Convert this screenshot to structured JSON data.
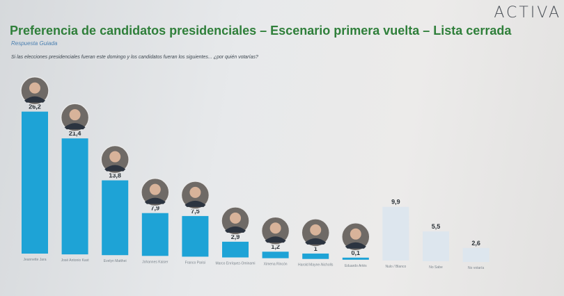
{
  "header": {
    "brand": "ACTIVA",
    "title": "Preferencia de candidatos presidenciales – Escenario primera vuelta – Lista cerrada",
    "subtitle": "Respuesta Guiada",
    "question": "Si las elecciones presidenciales fueran este domingo y los candidatos fueran los siguientes... ¿por quién votarías?"
  },
  "colors": {
    "bar_candidate": "#1ea3d6",
    "bar_other": "#dde6ee",
    "title": "#2f7f3a"
  },
  "chart_data": {
    "type": "bar",
    "title": "Preferencia de candidatos presidenciales – Escenario primera vuelta – Lista cerrada",
    "categories": [
      "Jeannette Jara",
      "José Antonio Kast",
      "Evelyn Matthei",
      "Johannes Kaiser",
      "Franco Parisi",
      "Marco Enríquez-Ominami",
      "Ximena Rincón",
      "Harold Mayne-Nicholls",
      "Eduardo Artés",
      "Nulo / Blanco",
      "No Sabe",
      "No votaría"
    ],
    "values": [
      26.2,
      21.4,
      13.8,
      7.9,
      7.5,
      2.9,
      1.2,
      1,
      0.1,
      9.9,
      5.5,
      2.6
    ],
    "value_labels": [
      "26,2",
      "21,4",
      "13,8",
      "7,9",
      "7,5",
      "2,9",
      "1,2",
      "1",
      "0,1",
      "9,9",
      "5,5",
      "2,6"
    ],
    "has_photo": [
      true,
      true,
      true,
      true,
      true,
      true,
      true,
      true,
      true,
      false,
      false,
      false
    ],
    "ylim": [
      0,
      28
    ],
    "grid": false,
    "legend": "none"
  }
}
